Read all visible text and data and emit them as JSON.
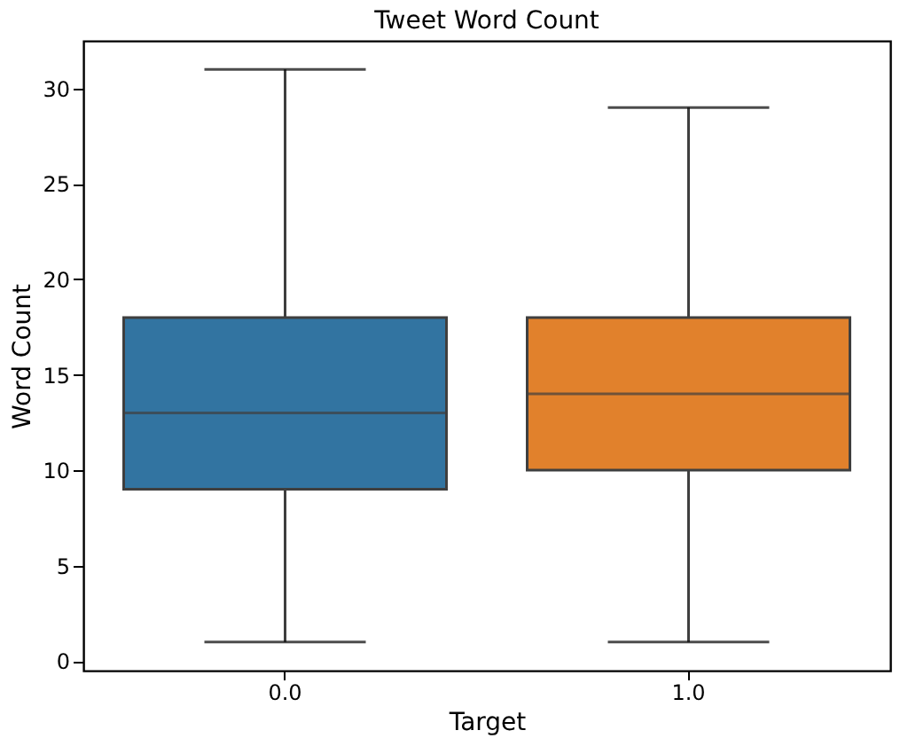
{
  "chart_data": {
    "type": "box",
    "title": "Tweet Word Count",
    "xlabel": "Target",
    "ylabel": "Word Count",
    "categories": [
      "0.0",
      "1.0"
    ],
    "colors": [
      "#3274a1",
      "#e1812c"
    ],
    "boxes": [
      {
        "low": 1,
        "q1": 9,
        "median": 13,
        "q3": 18,
        "high": 31
      },
      {
        "low": 1,
        "q1": 10,
        "median": 14,
        "q3": 18,
        "high": 29
      }
    ],
    "ylim": [
      -0.5,
      32.5
    ],
    "yticks": [
      0,
      5,
      10,
      15,
      20,
      25,
      30
    ],
    "grid": false
  }
}
